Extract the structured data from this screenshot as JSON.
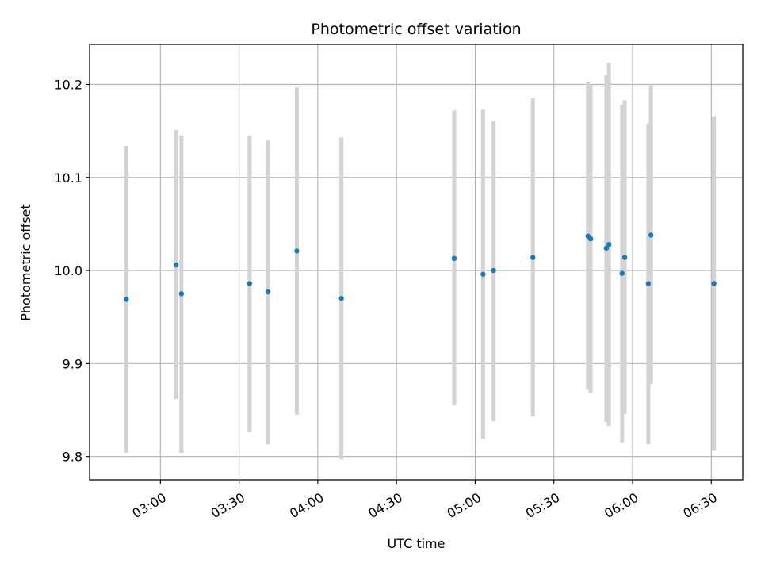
{
  "chart_data": {
    "type": "scatter",
    "title": "Photometric offset variation",
    "xlabel": "UTC time",
    "ylabel": "Photometric offset",
    "xlim": [
      "02:33",
      "06:42"
    ],
    "ylim": [
      9.775,
      10.243
    ],
    "grid": true,
    "x_ticks": [
      "03:00",
      "03:30",
      "04:00",
      "04:30",
      "05:00",
      "05:30",
      "06:00",
      "06:30"
    ],
    "y_ticks": [
      "9.8",
      "9.9",
      "10.0",
      "10.1",
      "10.2"
    ],
    "colors": {
      "points": "#1f77b4",
      "errorbars": "#d3d3d3",
      "grid": "#b0b0b0"
    },
    "series": [
      {
        "points": [
          {
            "x": "02:47",
            "y": 9.969,
            "ylow": 9.804,
            "yhigh": 10.134
          },
          {
            "x": "03:06",
            "y": 10.006,
            "ylow": 9.862,
            "yhigh": 10.151
          },
          {
            "x": "03:08",
            "y": 9.975,
            "ylow": 9.804,
            "yhigh": 10.145
          },
          {
            "x": "03:34",
            "y": 9.986,
            "ylow": 9.826,
            "yhigh": 10.145
          },
          {
            "x": "03:41",
            "y": 9.977,
            "ylow": 9.813,
            "yhigh": 10.14
          },
          {
            "x": "03:52",
            "y": 10.021,
            "ylow": 9.845,
            "yhigh": 10.197
          },
          {
            "x": "04:09",
            "y": 9.97,
            "ylow": 9.797,
            "yhigh": 10.143
          },
          {
            "x": "04:52",
            "y": 10.013,
            "ylow": 9.855,
            "yhigh": 10.172
          },
          {
            "x": "05:03",
            "y": 9.996,
            "ylow": 9.819,
            "yhigh": 10.173
          },
          {
            "x": "05:07",
            "y": 10.0,
            "ylow": 9.838,
            "yhigh": 10.161
          },
          {
            "x": "05:22",
            "y": 10.014,
            "ylow": 9.843,
            "yhigh": 10.185
          },
          {
            "x": "05:43",
            "y": 10.037,
            "ylow": 9.872,
            "yhigh": 10.203
          },
          {
            "x": "05:44",
            "y": 10.034,
            "ylow": 9.868,
            "yhigh": 10.2
          },
          {
            "x": "05:50",
            "y": 10.024,
            "ylow": 9.837,
            "yhigh": 10.21
          },
          {
            "x": "05:51",
            "y": 10.028,
            "ylow": 9.833,
            "yhigh": 10.223
          },
          {
            "x": "05:56",
            "y": 9.997,
            "ylow": 9.815,
            "yhigh": 10.178
          },
          {
            "x": "05:57",
            "y": 10.014,
            "ylow": 9.846,
            "yhigh": 10.183
          },
          {
            "x": "06:06",
            "y": 9.986,
            "ylow": 9.813,
            "yhigh": 10.158
          },
          {
            "x": "06:07",
            "y": 10.038,
            "ylow": 9.878,
            "yhigh": 10.199
          },
          {
            "x": "06:31",
            "y": 9.986,
            "ylow": 9.806,
            "yhigh": 10.166
          }
        ]
      }
    ]
  }
}
